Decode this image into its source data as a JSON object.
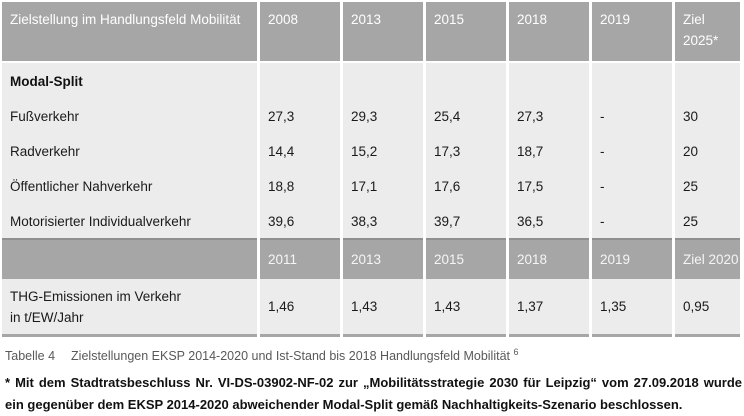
{
  "table": {
    "header1": {
      "label": "Zielstellung im Handlungsfeld Mobilität",
      "cols": [
        "2008",
        "2013",
        "2015",
        "2018",
        "2019",
        "Ziel 2025*"
      ]
    },
    "section_label": "Modal-Split",
    "rows": [
      {
        "label": "Fußverkehr",
        "values": [
          "27,3",
          "29,3",
          "25,4",
          "27,3",
          "-",
          "30"
        ]
      },
      {
        "label": "Radverkehr",
        "values": [
          "14,4",
          "15,2",
          "17,3",
          "18,7",
          "-",
          "20"
        ]
      },
      {
        "label": "Öffentlicher Nahverkehr",
        "values": [
          "18,8",
          "17,1",
          "17,6",
          "17,5",
          "-",
          "25"
        ]
      },
      {
        "label": "Motorisierter Individualverkehr",
        "values": [
          "39,6",
          "38,3",
          "39,7",
          "36,5",
          "-",
          "25"
        ]
      }
    ],
    "header2": {
      "cols": [
        "2011",
        "2013",
        "2015",
        "2018",
        "2019",
        "Ziel 2020"
      ]
    },
    "row_thg": {
      "label_line1": "THG-Emissionen im Verkehr",
      "label_line2": "in t/EW/Jahr",
      "values": [
        "1,46",
        "1,43",
        "1,43",
        "1,37",
        "1,35",
        "0,95"
      ]
    }
  },
  "caption": {
    "prefix": "Tabelle 4",
    "text": "Zielstellungen EKSP 2014-2020 und Ist-Stand bis 2018 Handlungsfeld Mobilität",
    "footnote_ref": "6"
  },
  "footnote": "* Mit dem Stadtratsbeschluss Nr. VI-DS-03902-NF-02 zur „Mobilitätsstrategie 2030 für Leipzig“ vom 27.09.2018 wurde ein gegenüber dem EKSP 2014-2020 abweichender Modal-Split gemäß Nachhaltigkeits-Szenario beschlossen.",
  "colors": {
    "header_bg": "#a6a6a6",
    "body_bg": "#ececec",
    "rule_dark": "#909090",
    "caption_text": "#595959"
  }
}
